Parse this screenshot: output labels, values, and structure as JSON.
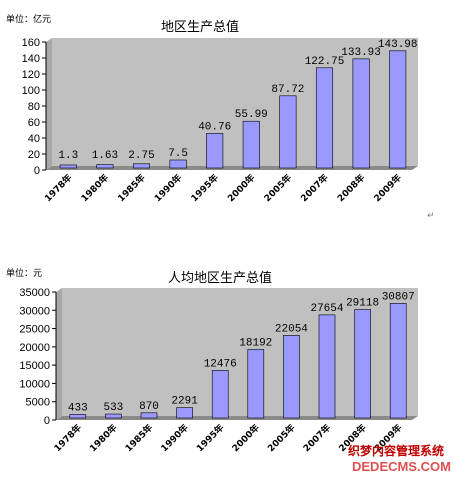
{
  "chart_data": [
    {
      "type": "bar",
      "unit_label": "单位：亿元",
      "title": "地区生产总值",
      "categories": [
        "1978年",
        "1980年",
        "1985年",
        "1990年",
        "1995年",
        "2000年",
        "2005年",
        "2007年",
        "2008年",
        "2009年"
      ],
      "values": [
        1.3,
        1.63,
        2.75,
        7.5,
        40.76,
        55.99,
        87.72,
        122.75,
        133.93,
        143.98
      ],
      "value_labels": [
        "1.3",
        "1.63",
        "2.75",
        "7.5",
        "40.76",
        "55.99",
        "87.72",
        "122.75",
        "133.93",
        "143.98"
      ],
      "yticks": [
        "0",
        "20",
        "40",
        "60",
        "80",
        "100",
        "120",
        "140",
        "160"
      ],
      "ylim": [
        0,
        160
      ],
      "grid": false,
      "bar_color": "#9999ff",
      "plot_bg": "#c0c0c0"
    },
    {
      "type": "bar",
      "unit_label": "单位：元",
      "title": "人均地区生产总值",
      "categories": [
        "1978年",
        "1980年",
        "1985年",
        "1990年",
        "1995年",
        "2000年",
        "2005年",
        "2007年",
        "2008年",
        "2009年"
      ],
      "values": [
        433,
        533,
        870,
        2291,
        12476,
        18192,
        22054,
        27654,
        29118,
        30807
      ],
      "value_labels": [
        "433",
        "533",
        "870",
        "2291",
        "12476",
        "18192",
        "22054",
        "27654",
        "29118",
        "30807"
      ],
      "yticks": [
        "0",
        "5000",
        "10000",
        "15000",
        "20000",
        "25000",
        "30000",
        "35000"
      ],
      "ylim": [
        0,
        35000
      ],
      "grid": false,
      "bar_color": "#9999ff",
      "plot_bg": "#c0c0c0"
    }
  ],
  "paragraph_mark": "↵",
  "watermark": {
    "chinese": "织梦内容管理系统",
    "english": "DEDECMS.COM"
  }
}
